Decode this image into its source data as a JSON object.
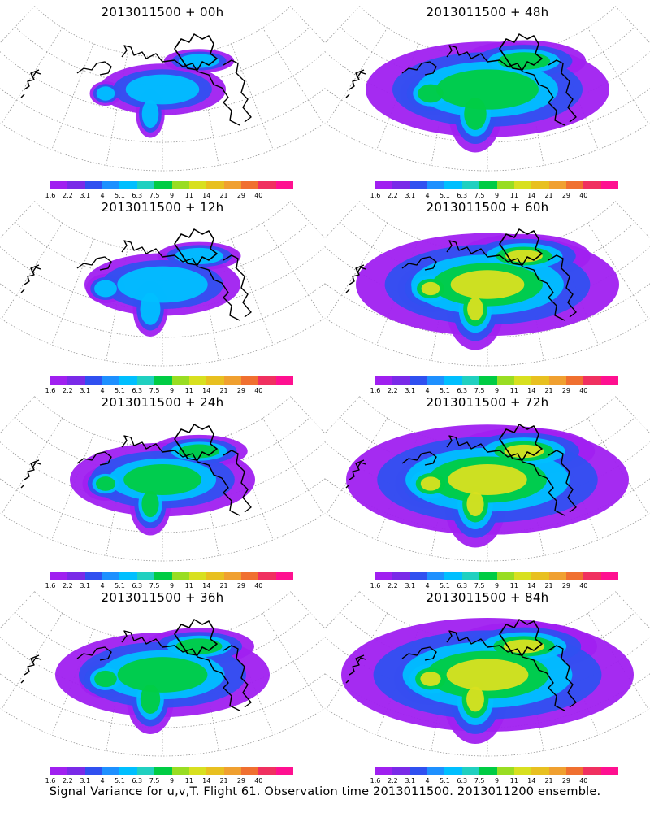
{
  "panels": [
    {
      "title": "2013011500 + 00h",
      "spread": 0.15,
      "intensity": 0.5
    },
    {
      "title": "2013011500 + 48h",
      "spread": 0.75,
      "intensity": 0.7
    },
    {
      "title": "2013011500 + 12h",
      "spread": 0.3,
      "intensity": 0.5
    },
    {
      "title": "2013011500 + 60h",
      "spread": 0.85,
      "intensity": 0.75
    },
    {
      "title": "2013011500 + 24h",
      "spread": 0.45,
      "intensity": 0.55
    },
    {
      "title": "2013011500 + 72h",
      "spread": 0.95,
      "intensity": 0.85
    },
    {
      "title": "2013011500 + 36h",
      "spread": 0.6,
      "intensity": 0.6
    },
    {
      "title": "2013011500 + 84h",
      "spread": 1.0,
      "intensity": 0.95
    }
  ],
  "colorbar": {
    "labels": [
      "1.6",
      "2.2",
      "3.1",
      "4",
      "5.1",
      "6.3",
      "7.5",
      "9",
      "11",
      "14",
      "21",
      "29",
      "40"
    ],
    "colors": [
      "#a020f0",
      "#7a2ae8",
      "#3050f0",
      "#1e90ff",
      "#00bfff",
      "#20d0c0",
      "#00cc44",
      "#99dd22",
      "#d8e020",
      "#e8c020",
      "#f0a030",
      "#f07030",
      "#f03060",
      "#ff1090"
    ]
  },
  "caption": "Signal Variance for u,v,T. Flight 61. Observation time 2013011500. 2013011200 ensemble."
}
